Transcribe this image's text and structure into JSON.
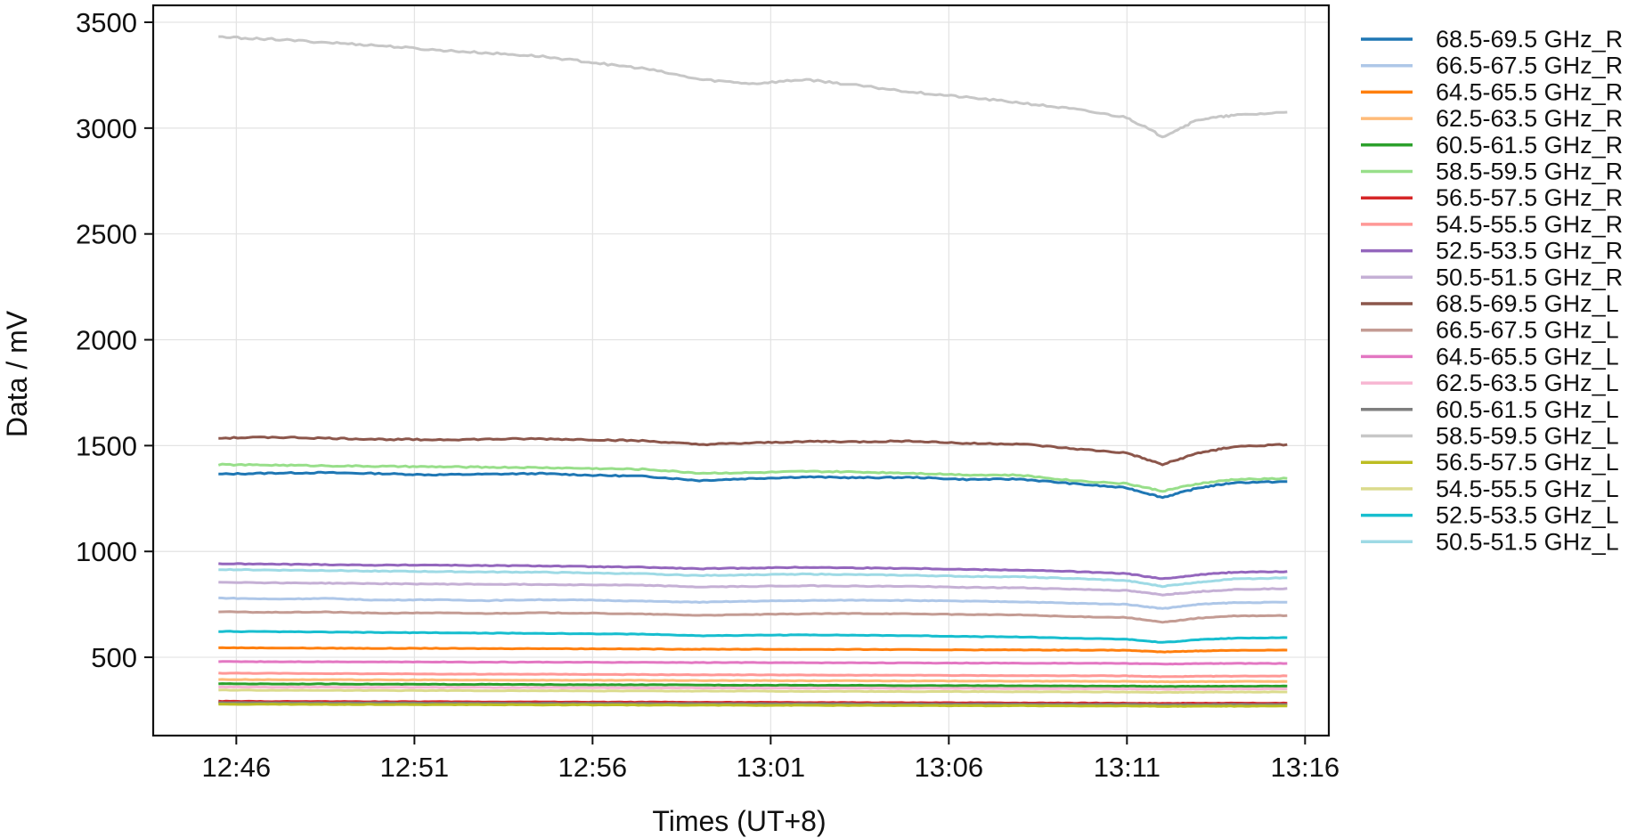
{
  "chart_data": {
    "type": "line",
    "xlabel": "Times (UT+8)",
    "ylabel": "Data / mV",
    "x_ticks": [
      "12:46",
      "12:51",
      "12:56",
      "13:01",
      "13:06",
      "13:11",
      "13:16"
    ],
    "y_ticks": [
      500,
      1000,
      1500,
      2000,
      2500,
      3000,
      3500
    ],
    "xlim": [
      "12:43:40",
      "13:16:40"
    ],
    "ylim": [
      130,
      3580
    ],
    "grid": true,
    "legend_position": "outside-right",
    "x": [
      "12:45:30",
      "12:47:00",
      "12:48:30",
      "12:50:00",
      "12:51:30",
      "12:53:00",
      "12:54:30",
      "12:56:00",
      "12:57:30",
      "12:59:00",
      "13:00:30",
      "13:02:00",
      "13:03:30",
      "13:05:00",
      "13:06:30",
      "13:08:00",
      "13:09:30",
      "13:11:00",
      "13:12:00",
      "13:13:00",
      "13:14:00",
      "13:15:30"
    ],
    "series": [
      {
        "name": "68.5-69.5 GHz_R",
        "color": "#1f77b4",
        "values": [
          1365,
          1370,
          1372,
          1368,
          1362,
          1365,
          1368,
          1360,
          1355,
          1335,
          1345,
          1352,
          1348,
          1350,
          1340,
          1342,
          1320,
          1300,
          1255,
          1300,
          1325,
          1330
        ]
      },
      {
        "name": "66.5-67.5 GHz_R",
        "color": "#aec7e8",
        "values": [
          780,
          775,
          778,
          770,
          772,
          768,
          772,
          770,
          765,
          760,
          765,
          768,
          770,
          768,
          765,
          762,
          755,
          750,
          730,
          750,
          758,
          760
        ]
      },
      {
        "name": "64.5-65.5 GHz_R",
        "color": "#ff7f0e",
        "values": [
          545,
          544,
          543,
          542,
          542,
          541,
          541,
          540,
          539,
          538,
          538,
          537,
          537,
          536,
          535,
          535,
          534,
          533,
          525,
          530,
          533,
          534
        ]
      },
      {
        "name": "62.5-63.5 GHz_R",
        "color": "#ffbb78",
        "values": [
          395,
          394,
          394,
          393,
          393,
          392,
          392,
          391,
          391,
          390,
          390,
          389,
          389,
          388,
          388,
          387,
          387,
          386,
          384,
          385,
          386,
          386
        ]
      },
      {
        "name": "60.5-61.5 GHz_R",
        "color": "#2ca02c",
        "values": [
          375,
          374,
          374,
          373,
          372,
          372,
          371,
          370,
          370,
          369,
          368,
          368,
          367,
          366,
          366,
          365,
          364,
          364,
          362,
          363,
          363,
          364
        ]
      },
      {
        "name": "58.5-59.5 GHz_R",
        "color": "#98df8a",
        "values": [
          1410,
          1408,
          1405,
          1402,
          1400,
          1398,
          1396,
          1392,
          1388,
          1370,
          1372,
          1378,
          1375,
          1370,
          1362,
          1360,
          1335,
          1320,
          1285,
          1320,
          1340,
          1345
        ]
      },
      {
        "name": "56.5-57.5 GHz_R",
        "color": "#d62728",
        "values": [
          292,
          291,
          291,
          290,
          290,
          289,
          289,
          288,
          288,
          287,
          287,
          286,
          286,
          285,
          285,
          284,
          284,
          283,
          282,
          283,
          283,
          283
        ]
      },
      {
        "name": "54.5-55.5 GHz_R",
        "color": "#ff9896",
        "values": [
          425,
          424,
          423,
          422,
          421,
          420,
          420,
          419,
          418,
          417,
          417,
          416,
          415,
          415,
          414,
          413,
          413,
          412,
          408,
          410,
          411,
          412
        ]
      },
      {
        "name": "52.5-53.5 GHz_R",
        "color": "#9467bd",
        "values": [
          942,
          940,
          938,
          935,
          936,
          933,
          932,
          928,
          925,
          918,
          922,
          925,
          922,
          920,
          915,
          912,
          905,
          895,
          870,
          890,
          902,
          905
        ]
      },
      {
        "name": "50.5-51.5 GHz_R",
        "color": "#c5b0d5",
        "values": [
          855,
          852,
          850,
          848,
          846,
          845,
          844,
          842,
          840,
          832,
          835,
          838,
          836,
          835,
          830,
          828,
          822,
          815,
          795,
          810,
          820,
          825
        ]
      },
      {
        "name": "68.5-69.5 GHz_L",
        "color": "#8c564b",
        "values": [
          1535,
          1540,
          1535,
          1530,
          1528,
          1530,
          1532,
          1528,
          1522,
          1505,
          1512,
          1520,
          1518,
          1522,
          1510,
          1508,
          1485,
          1465,
          1410,
          1465,
          1495,
          1505
        ]
      },
      {
        "name": "66.5-67.5 GHz_L",
        "color": "#c49c94",
        "values": [
          715,
          712,
          714,
          708,
          710,
          707,
          710,
          708,
          704,
          698,
          702,
          705,
          707,
          705,
          702,
          700,
          692,
          688,
          665,
          685,
          695,
          697
        ]
      },
      {
        "name": "64.5-65.5 GHz_L",
        "color": "#e377c2",
        "values": [
          480,
          479,
          479,
          478,
          478,
          477,
          477,
          476,
          476,
          475,
          475,
          474,
          474,
          473,
          473,
          472,
          472,
          471,
          468,
          470,
          471,
          471
        ]
      },
      {
        "name": "62.5-63.5 GHz_L",
        "color": "#f7b6d2",
        "values": [
          360,
          359,
          359,
          358,
          358,
          357,
          357,
          356,
          356,
          355,
          355,
          354,
          354,
          353,
          353,
          352,
          352,
          351,
          349,
          350,
          351,
          351
        ]
      },
      {
        "name": "60.5-61.5 GHz_L",
        "color": "#7f7f7f",
        "values": [
          285,
          285,
          284,
          284,
          283,
          283,
          282,
          282,
          281,
          281,
          280,
          280,
          279,
          279,
          278,
          278,
          277,
          277,
          276,
          276,
          277,
          277
        ]
      },
      {
        "name": "58.5-59.5 GHz_L",
        "color": "#c7c7c7",
        "values": [
          3430,
          3420,
          3405,
          3390,
          3370,
          3355,
          3340,
          3310,
          3280,
          3230,
          3210,
          3230,
          3200,
          3170,
          3145,
          3120,
          3090,
          3050,
          2960,
          3040,
          3060,
          3075
        ]
      },
      {
        "name": "56.5-57.5 GHz_L",
        "color": "#bcbd22",
        "values": [
          278,
          278,
          277,
          277,
          276,
          276,
          275,
          275,
          274,
          274,
          273,
          273,
          272,
          272,
          271,
          271,
          270,
          270,
          268,
          269,
          269,
          270
        ]
      },
      {
        "name": "54.5-55.5 GHz_L",
        "color": "#dbdb8d",
        "values": [
          345,
          344,
          344,
          343,
          343,
          342,
          342,
          341,
          341,
          340,
          340,
          339,
          339,
          338,
          338,
          337,
          337,
          336,
          334,
          335,
          336,
          336
        ]
      },
      {
        "name": "52.5-53.5 GHz_L",
        "color": "#17becf",
        "values": [
          622,
          621,
          619,
          617,
          616,
          614,
          613,
          611,
          609,
          602,
          604,
          606,
          604,
          602,
          598,
          596,
          590,
          585,
          570,
          583,
          590,
          593
        ]
      },
      {
        "name": "50.5-51.5 GHz_L",
        "color": "#9edae5",
        "values": [
          915,
          912,
          910,
          907,
          905,
          903,
          902,
          898,
          894,
          886,
          890,
          893,
          890,
          887,
          882,
          880,
          872,
          862,
          835,
          855,
          870,
          875
        ]
      }
    ]
  }
}
